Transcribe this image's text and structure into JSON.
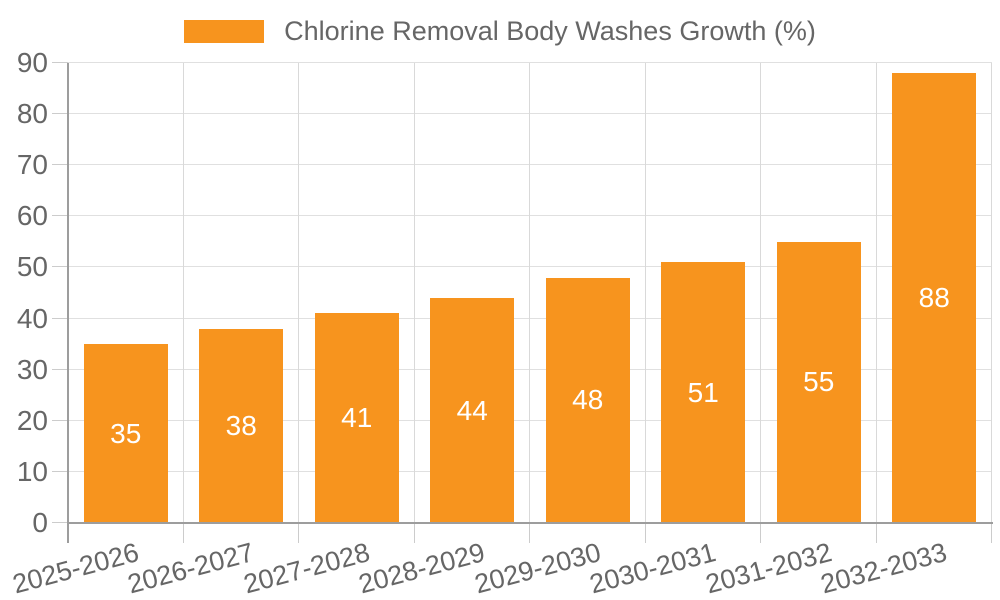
{
  "legend": {
    "label": "Chlorine Removal Body Washes Growth (%)"
  },
  "chart_data": {
    "type": "bar",
    "title": "Chlorine Removal Body Washes Growth (%)",
    "categories": [
      "2025-2026",
      "2026-2027",
      "2027-2028",
      "2028-2029",
      "2029-2030",
      "2030-2031",
      "2031-2032",
      "2032-2033"
    ],
    "values": [
      35,
      38,
      41,
      44,
      48,
      51,
      55,
      88
    ],
    "bar_value_labels": [
      "35",
      "38",
      "41",
      "44",
      "48",
      "51",
      "55",
      "88"
    ],
    "xlabel": "",
    "ylabel": "",
    "ylim": [
      0,
      90
    ],
    "ytick_interval": 10,
    "ytick_labels": [
      "0",
      "10",
      "20",
      "30",
      "40",
      "50",
      "60",
      "70",
      "80",
      "90"
    ],
    "grid": true,
    "legend_position": "top-center",
    "x_label_rotation_deg": -15,
    "value_labels_position": "inside-center"
  },
  "colors": {
    "bar": "#f7941e",
    "axis_text": "#666666",
    "value_label_text": "#ffffff",
    "grid_horizontal": "#e0e0e0",
    "grid_vertical": "#d9d9d9",
    "axis_line": "#9d9d9d",
    "tick": "#cccccc",
    "background": "#ffffff"
  }
}
